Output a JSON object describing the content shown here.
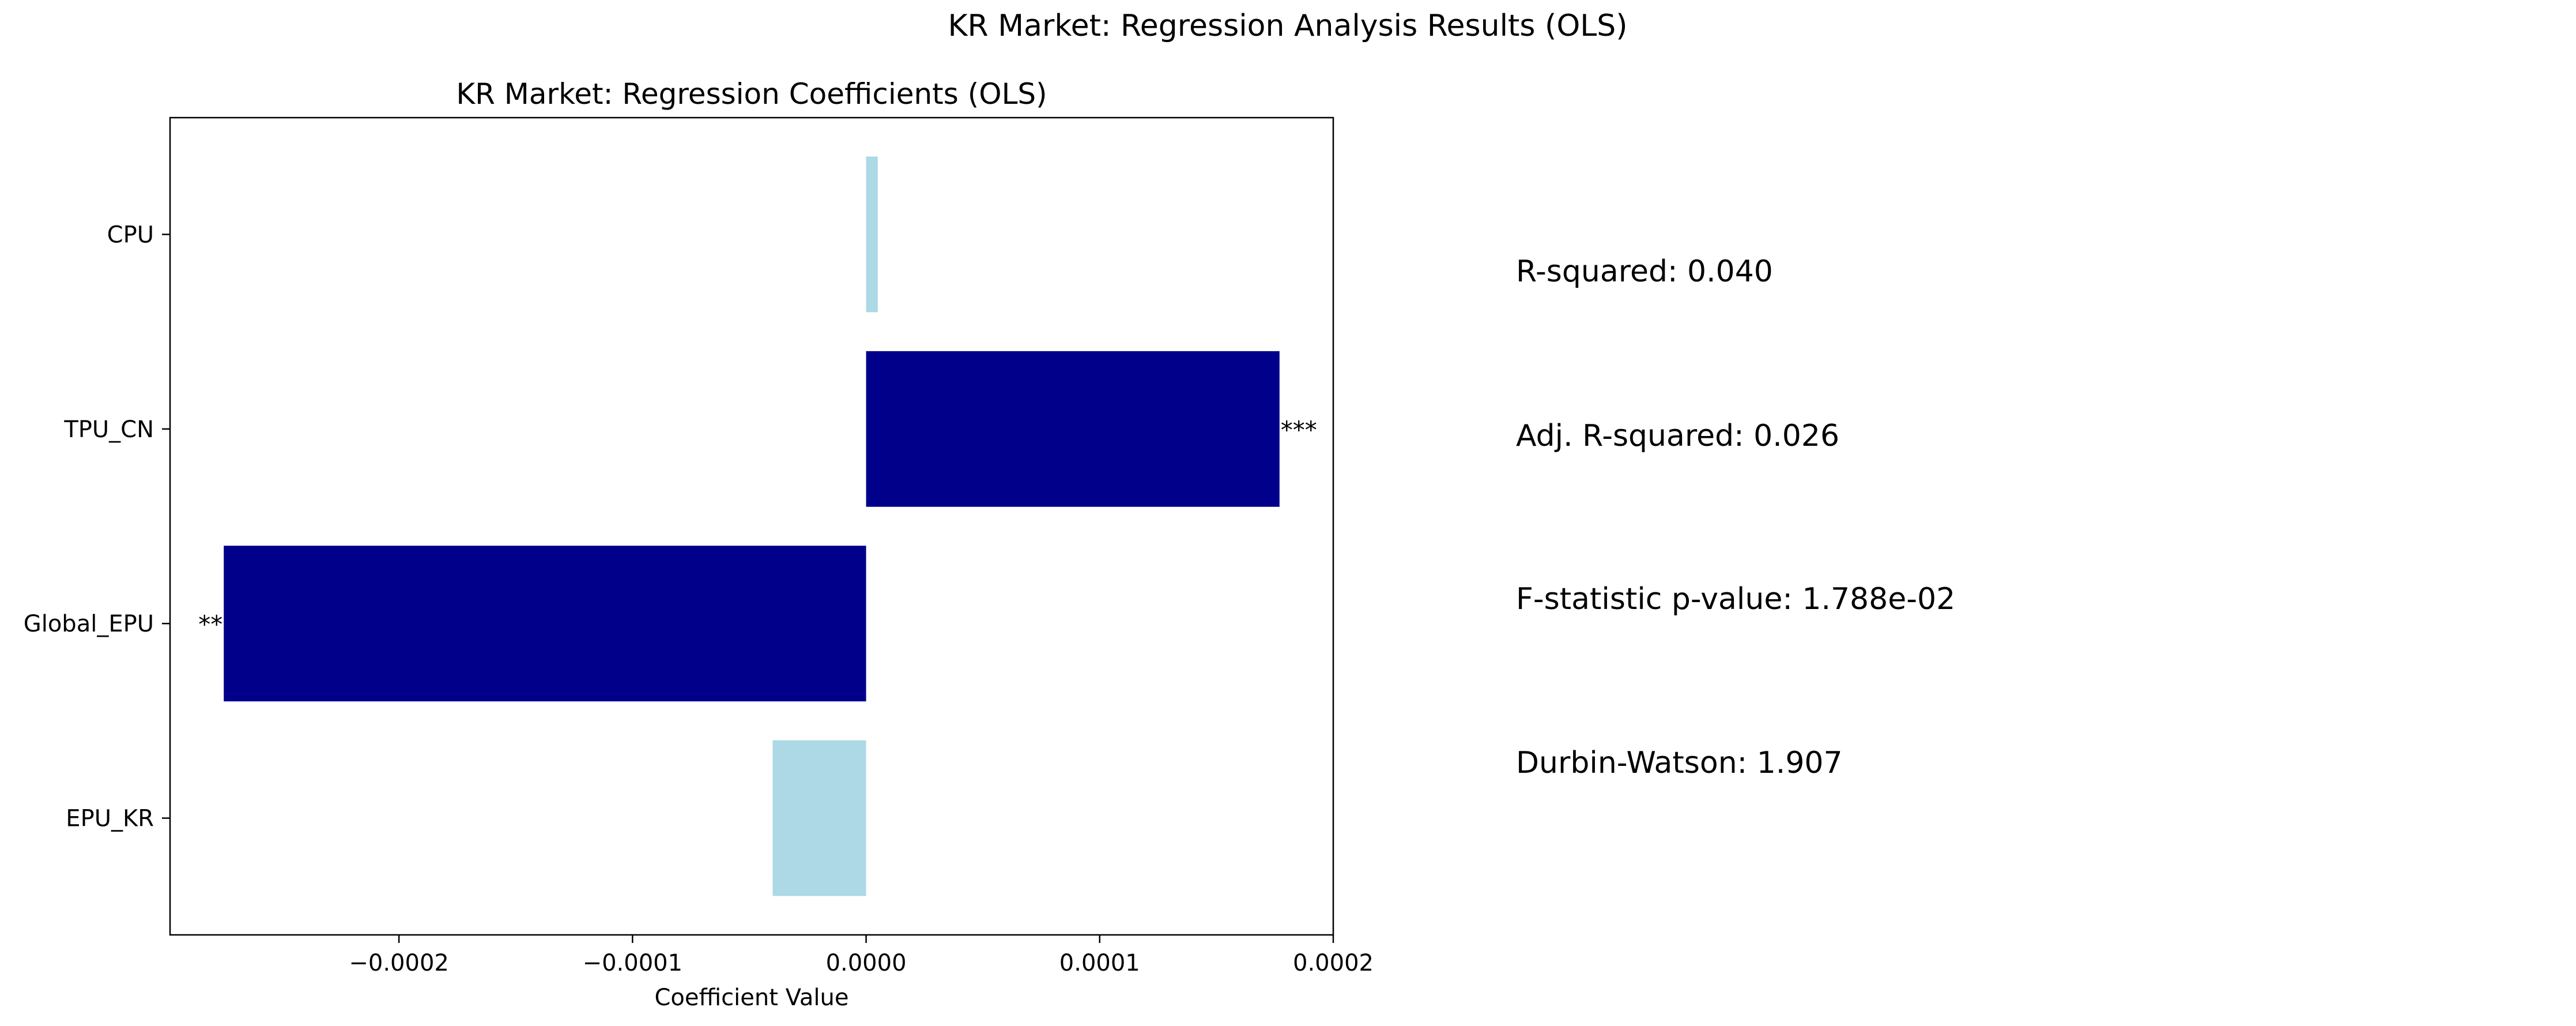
{
  "figure": {
    "suptitle": "KR Market: Regression Analysis Results (OLS)"
  },
  "chart_data": {
    "type": "bar",
    "orientation": "horizontal",
    "title": "KR Market: Regression Coefficients (OLS)",
    "xlabel": "Coefficient Value",
    "ylabel": "",
    "categories": [
      "EPU_KR",
      "Global_EPU",
      "TPU_CN",
      "CPU"
    ],
    "values": [
      -4e-05,
      -0.000275,
      0.000177,
      5e-06
    ],
    "significance": [
      "",
      "**",
      "***",
      ""
    ],
    "significant": [
      false,
      true,
      true,
      false
    ],
    "colors": {
      "significant": "#00008b",
      "not_significant": "#add8e6"
    },
    "xlim": [
      -0.000298,
      0.0002
    ],
    "xticks": [
      -0.0002,
      -0.0001,
      0.0,
      0.0001,
      0.0002
    ],
    "xtick_labels": [
      "−0.0002",
      "−0.0001",
      "0.0000",
      "0.0001",
      "0.0002"
    ],
    "grid": false,
    "legend": "none"
  },
  "stats": [
    {
      "label": "R-squared: 0.040"
    },
    {
      "label": "Adj. R-squared: 0.026"
    },
    {
      "label": "F-statistic p-value: 1.788e-02"
    },
    {
      "label": "Durbin-Watson: 1.907"
    }
  ]
}
